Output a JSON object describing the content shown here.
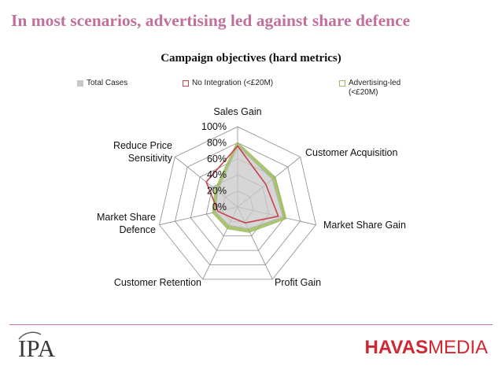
{
  "slide": {
    "headline": "In most scenarios, advertising led against share defence",
    "logos": {
      "left": "IPA",
      "right_brand": "HAVAS",
      "right_suffix": "MEDIA"
    }
  },
  "colors": {
    "headline": "#c0709c",
    "total_cases": "#c8c8c8",
    "no_integration": "#c8434b",
    "advertising_led": "#9bbb59",
    "grid": "#8a8a8a",
    "footer_line": "#c0709c",
    "havas_red": "#d22630"
  },
  "chart_data": {
    "type": "radar",
    "title": "Campaign objectives (hard metrics)",
    "categories": [
      "Sales Gain",
      "Customer Acquisition",
      "Market Share Gain",
      "Profit Gain",
      "Customer Retention",
      "Market Share Defence",
      "Reduce Price Sensitivity"
    ],
    "category_labels": [
      [
        "Sales Gain"
      ],
      [
        "Customer Acquisition"
      ],
      [
        "Market Share Gain"
      ],
      [
        "Profit Gain"
      ],
      [
        "Customer Retention"
      ],
      [
        "Market Share",
        "Defence"
      ],
      [
        "Reduce Price",
        "Sensitivity"
      ]
    ],
    "r_range": [
      0,
      100
    ],
    "r_ticks": [
      "0%",
      "20%",
      "40%",
      "60%",
      "80%",
      "100%"
    ],
    "grid": true,
    "legend_position": "top",
    "series": [
      {
        "name": "Total Cases",
        "legend_lines": [
          "Total Cases"
        ],
        "style": "filled",
        "values": [
          77,
          55,
          58,
          30,
          25,
          28,
          32
        ]
      },
      {
        "name": "No Integration (<£20M)",
        "legend_lines": [
          "No Integration (<£20M)"
        ],
        "style": "line",
        "values": [
          76,
          45,
          52,
          22,
          15,
          25,
          50
        ]
      },
      {
        "name": "Advertising-led (<£20M)",
        "legend_lines": [
          "Advertising-led",
          "(<£20M)"
        ],
        "style": "outline",
        "values": [
          78,
          58,
          60,
          33,
          28,
          30,
          34
        ]
      }
    ]
  }
}
